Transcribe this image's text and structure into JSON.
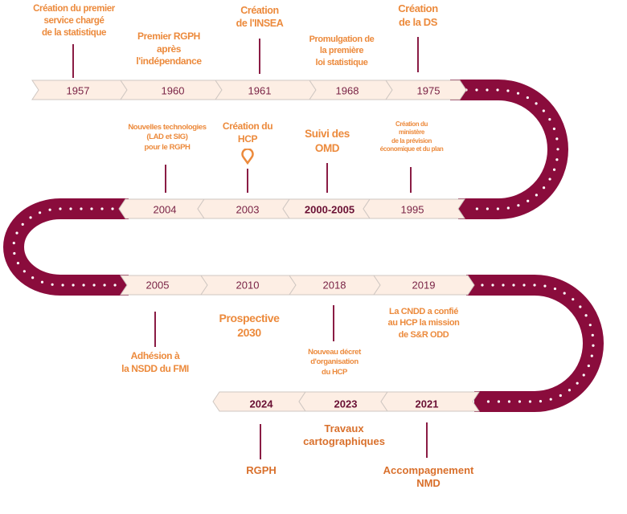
{
  "colors": {
    "road": "#8a0c3c",
    "band": "#fdeee4",
    "label": "#ec8a3c",
    "year": "#7a2446"
  },
  "row1": [
    {
      "year": "1957",
      "label": "Création du premier\nservice chargé\nde la statistique"
    },
    {
      "year": "1960",
      "label": "Premier RGPH\naprès\nl'indépendance"
    },
    {
      "year": "1961",
      "label": "Création\nde l'INSEA"
    },
    {
      "year": "1968",
      "label": "Promulgation de\nla première\nloi statistique"
    },
    {
      "year": "1975",
      "label": "Création\nde la DS"
    }
  ],
  "row2": [
    {
      "year": "2004",
      "label": "Nouvelles technologies\n(LAD et SIG)\npour le RGPH"
    },
    {
      "year": "2003",
      "label": "Création du\nHCP",
      "icon": "map-pin-icon"
    },
    {
      "year": "2000-2005",
      "label": "Suivi des\nOMD"
    },
    {
      "year": "1995",
      "label": "Création du\nministère\nde la prévision\néconomique et du plan"
    }
  ],
  "row3": [
    {
      "year": "2005",
      "label": "Adhésion à\nla NSDD du FMI"
    },
    {
      "year": "2010",
      "label": "Prospective\n2030"
    },
    {
      "year": "2018",
      "label": "Nouveau décret\nd'organisation\ndu HCP"
    },
    {
      "year": "2019",
      "label": "La CNDD a confié\nau HCP la mission\nde S&R ODD"
    }
  ],
  "row4": [
    {
      "year": "2024",
      "label": "RGPH"
    },
    {
      "year": "2023",
      "label": "Travaux\ncartographiques"
    },
    {
      "year": "2021",
      "label": "Accompagnement\nNMD"
    }
  ]
}
